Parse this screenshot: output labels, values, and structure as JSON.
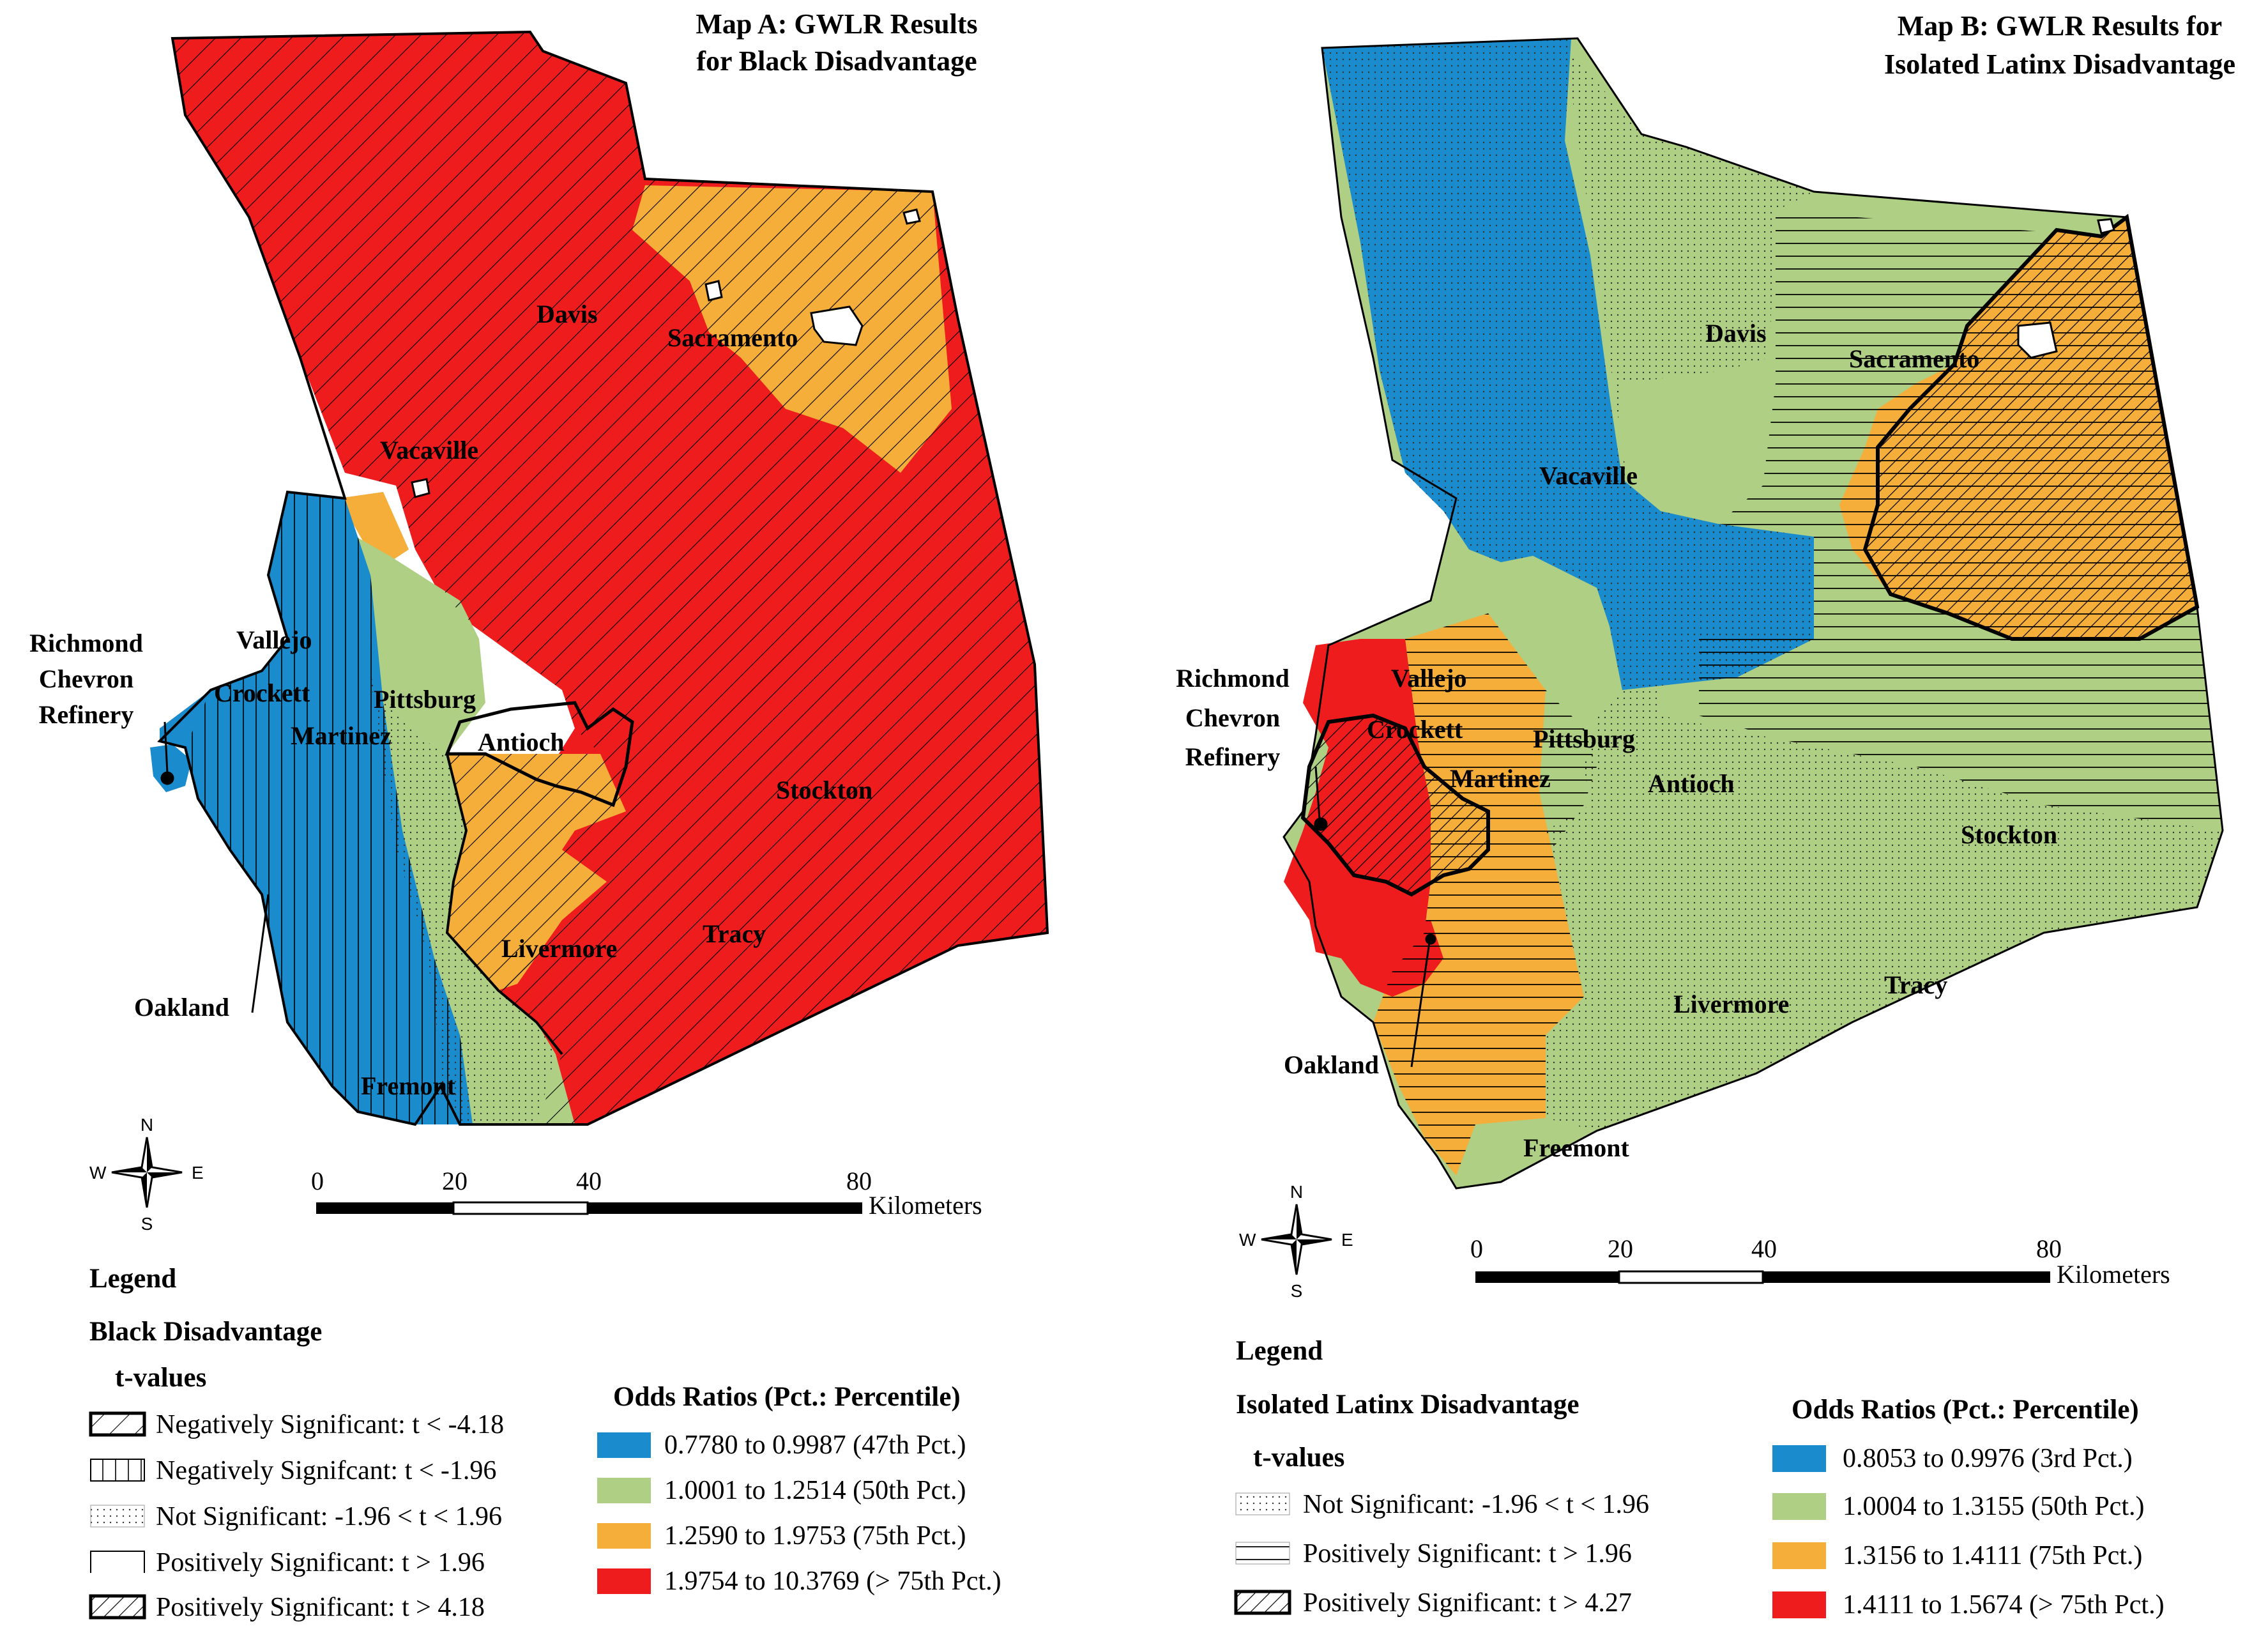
{
  "colors": {
    "blue": "#1a8bcc",
    "green": "#aecf84",
    "orange": "#f5ae3a",
    "red": "#ee1c1c",
    "outline": "#000000"
  },
  "map_a": {
    "title_line1": "Map A: GWLR Results",
    "title_line2": "for Black Disadvantage",
    "cities": {
      "davis": "Davis",
      "sacramento": "Sacramento",
      "vacaville": "Vacaville",
      "vallejo": "Vallejo",
      "crockett": "Crockett",
      "martinez": "Martinez",
      "pittsburg": "Pittsburg",
      "antioch": "Antioch",
      "stockton": "Stockton",
      "tracy": "Tracy",
      "livermore": "Livermore",
      "oakland": "Oakland",
      "fremont": "Fremont"
    },
    "refinery": [
      "Richmond",
      "Chevron",
      "Refinery"
    ],
    "compass": {
      "n": "N",
      "s": "S",
      "e": "E",
      "w": "W"
    },
    "scale": {
      "ticks": [
        "0",
        "20",
        "40",
        "80"
      ],
      "unit": "Kilometers"
    },
    "legend": {
      "heading": "Legend",
      "variable": "Black Disadvantage",
      "tvalues_heading": "t-values",
      "tvalues": [
        "Negatively Significant: t < -4.18",
        "Negatively Signifcant: t < -1.96",
        "Not Significant: -1.96 < t < 1.96",
        "Positively Significant: t > 1.96",
        "Positively Significant: t > 4.18"
      ],
      "odds_heading": "Odds Ratios (Pct.: Percentile)",
      "odds": [
        "0.7780 to 0.9987 (47th Pct.)",
        "1.0001 to 1.2514 (50th Pct.)",
        "1.2590 to 1.9753 (75th Pct.)",
        "1.9754 to 10.3769 (> 75th Pct.)"
      ]
    }
  },
  "map_b": {
    "title_line1": "Map B: GWLR Results for",
    "title_line2": "Isolated Latinx Disadvantage",
    "cities": {
      "davis": "Davis",
      "sacramento": "Sacramento",
      "vacaville": "Vacaville",
      "vallejo": "Vallejo",
      "crockett": "Crockett",
      "martinez": "Martinez",
      "pittsburg": "Pittsburg",
      "antioch": "Antioch",
      "stockton": "Stockton",
      "tracy": "Tracy",
      "livermore": "Livermore",
      "oakland": "Oakland",
      "fremont": "Freemont"
    },
    "refinery": [
      "Richmond",
      "Chevron",
      "Refinery"
    ],
    "compass": {
      "n": "N",
      "s": "S",
      "e": "E",
      "w": "W"
    },
    "scale": {
      "ticks": [
        "0",
        "20",
        "40",
        "80"
      ],
      "unit": "Kilometers"
    },
    "legend": {
      "heading": "Legend",
      "variable": "Isolated Latinx Disadvantage",
      "tvalues_heading": "t-values",
      "tvalues": [
        "Not Significant: -1.96 < t < 1.96",
        "Positively Significant: t > 1.96",
        "Positively Significant: t > 4.27"
      ],
      "odds_heading": "Odds Ratios (Pct.: Percentile)",
      "odds": [
        "0.8053 to 0.9976 (3rd Pct.)",
        "1.0004 to 1.3155 (50th Pct.)",
        "1.3156 to 1.4111 (75th Pct.)",
        "1.4111 to 1.5674 (> 75th Pct.)"
      ]
    }
  }
}
